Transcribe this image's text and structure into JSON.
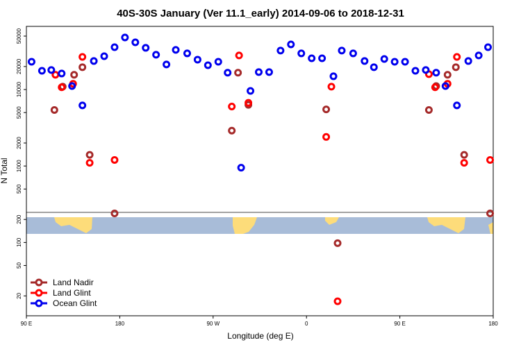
{
  "chart_data": {
    "type": "scatter",
    "title": "40S-30S January (Ver 11.1_early)   2014-09-06 to 2018-12-31",
    "x_label": "Longitude (deg E)",
    "y_label": "N Total",
    "log_y": true,
    "xlim": [
      90,
      540
    ],
    "ylim": [
      11,
      67000
    ],
    "xticks": [
      {
        "value": 90,
        "label": "90 E"
      },
      180,
      {
        "value": 270,
        "label": "90 W"
      },
      {
        "value": 360,
        "label": "0"
      },
      {
        "value": 450,
        "label": "90 E"
      },
      {
        "value": 540,
        "label": "180"
      }
    ],
    "yticks": [
      20,
      50,
      100,
      200,
      500,
      1000,
      2000,
      5000,
      10000,
      20000,
      50000
    ],
    "legend": "bottom-left",
    "series": [
      {
        "name": "Land Nadir",
        "color": "#a52a2a",
        "x": [
          117,
          125,
          136,
          144,
          151,
          175,
          288,
          294,
          304,
          379,
          390,
          478,
          485,
          496,
          504,
          512,
          537
        ],
        "values": [
          5400,
          10900,
          15600,
          19600,
          1400,
          240,
          2900,
          16600,
          6300,
          5500,
          98,
          5400,
          11100,
          15600,
          19600,
          1400,
          240
        ]
      },
      {
        "name": "Land Glint",
        "color": "#ff0000",
        "x": [
          118,
          124,
          135,
          144,
          151,
          175,
          288,
          295,
          304,
          379,
          384,
          390,
          478,
          484,
          496,
          505,
          512,
          537
        ],
        "values": [
          15600,
          10700,
          11900,
          26700,
          1100,
          1200,
          6000,
          27900,
          6700,
          2400,
          10900,
          17,
          15900,
          10700,
          11900,
          26700,
          1100,
          1200
        ]
      },
      {
        "name": "Ocean Glint",
        "color": "#0000ee",
        "x": [
          95,
          105,
          114,
          124,
          134,
          144,
          155,
          165,
          175,
          185,
          195,
          205,
          215,
          225,
          234,
          245,
          255,
          265,
          275,
          284,
          297,
          306,
          314,
          324,
          335,
          345,
          355,
          365,
          375,
          386,
          394,
          405,
          416,
          425,
          435,
          445,
          455,
          465,
          475,
          485,
          494,
          505,
          516,
          526,
          535
        ],
        "values": [
          23100,
          17600,
          18000,
          16200,
          11100,
          6200,
          23600,
          27300,
          35800,
          48000,
          41400,
          35100,
          28500,
          21300,
          33000,
          29700,
          24600,
          20800,
          23100,
          16600,
          950,
          9600,
          16900,
          16900,
          32300,
          38900,
          29700,
          25600,
          25600,
          14900,
          32300,
          29700,
          23600,
          19600,
          25100,
          23100,
          23100,
          17600,
          18000,
          16600,
          11100,
          6200,
          23600,
          27900,
          35800
        ]
      }
    ]
  }
}
